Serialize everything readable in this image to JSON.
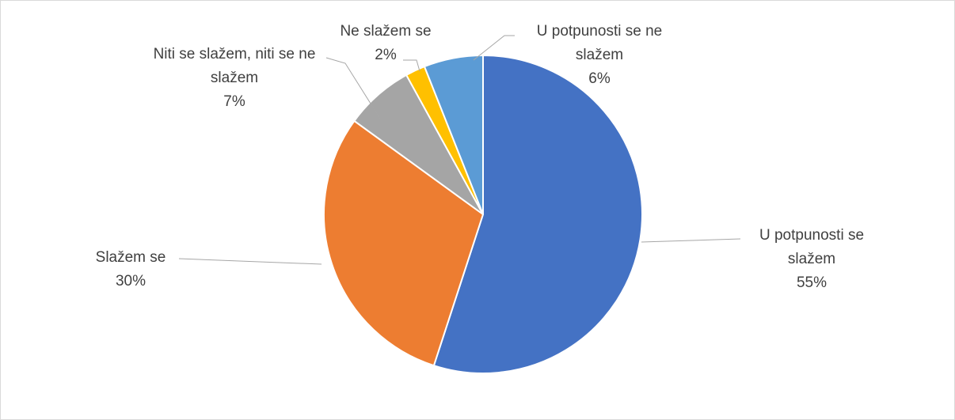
{
  "chart_data": {
    "type": "pie",
    "categories": [
      "U potpunosti se slažem",
      "Slažem se",
      "Niti se slažem, niti se ne slažem",
      "Ne slažem se",
      "U potpunosti se ne slažem"
    ],
    "values": [
      55,
      30,
      7,
      2,
      6
    ],
    "value_labels": [
      "55%",
      "30%",
      "7%",
      "2%",
      "6%"
    ],
    "colors": [
      "#4472c4",
      "#ed7d31",
      "#a5a5a5",
      "#ffc000",
      "#5b9bd5"
    ]
  }
}
